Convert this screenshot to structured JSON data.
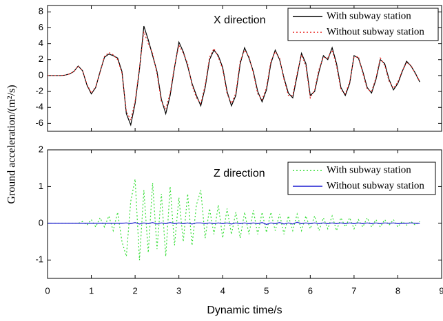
{
  "chart_data": [
    {
      "type": "line",
      "title": "X direction",
      "ylabel": "Ground acceleration/(m²/s)",
      "x": [
        0,
        0.1,
        0.2,
        0.3,
        0.4,
        0.5,
        0.6,
        0.7,
        0.8,
        0.9,
        1,
        1.1,
        1.2,
        1.3,
        1.4,
        1.5,
        1.6,
        1.7,
        1.8,
        1.9,
        2,
        2.1,
        2.2,
        2.3,
        2.4,
        2.5,
        2.6,
        2.7,
        2.8,
        2.9,
        3,
        3.1,
        3.2,
        3.3,
        3.4,
        3.5,
        3.6,
        3.7,
        3.8,
        3.9,
        4,
        4.1,
        4.2,
        4.3,
        4.4,
        4.5,
        4.6,
        4.7,
        4.8,
        4.9,
        5,
        5.1,
        5.2,
        5.3,
        5.4,
        5.5,
        5.6,
        5.7,
        5.8,
        5.9,
        6,
        6.1,
        6.2,
        6.3,
        6.4,
        6.5,
        6.6,
        6.7,
        6.8,
        6.9,
        7,
        7.1,
        7.2,
        7.3,
        7.4,
        7.5,
        7.6,
        7.7,
        7.8,
        7.9,
        8,
        8.1,
        8.2,
        8.3,
        8.4,
        8.5
      ],
      "series": [
        {
          "name": "With subway station",
          "color": "#000000",
          "line_style": "solid",
          "values": [
            0,
            0,
            0,
            0,
            0.05,
            0.2,
            0.5,
            1.2,
            0.6,
            -1.2,
            -2.3,
            -1.5,
            0.5,
            2.3,
            2.7,
            2.5,
            2.2,
            0.5,
            -4.8,
            -6.2,
            -3.5,
            0.8,
            6.2,
            4.5,
            2.5,
            0.5,
            -3.0,
            -4.8,
            -2.5,
            1.0,
            4.2,
            3.0,
            1.2,
            -1.0,
            -2.5,
            -3.8,
            -1.5,
            2.0,
            3.2,
            2.5,
            1.0,
            -2.0,
            -3.8,
            -2.5,
            1.5,
            3.5,
            2.2,
            0.5,
            -2.0,
            -3.3,
            -1.8,
            1.5,
            3.2,
            2.0,
            -0.3,
            -2.2,
            -2.8,
            0,
            2.8,
            1.5,
            -2.5,
            -2.0,
            0.5,
            2.5,
            2.0,
            3.5,
            1.5,
            -1.5,
            -2.5,
            -1.0,
            2.5,
            2.2,
            0.5,
            -1.5,
            -2.2,
            -0.5,
            2.0,
            1.5,
            -0.5,
            -1.8,
            -1.0,
            0.5,
            1.8,
            1.2,
            0.3,
            -0.8
          ]
        },
        {
          "name": "Without subway station",
          "color": "#e8201c",
          "line_style": "dotted",
          "values": [
            0,
            0,
            0,
            0,
            0.05,
            0.2,
            0.5,
            1.2,
            0.6,
            -1.1,
            -2.2,
            -1.4,
            0.4,
            2.4,
            2.9,
            2.6,
            2.0,
            0.3,
            -4.5,
            -5.6,
            -3.2,
            1.0,
            5.5,
            4.0,
            2.8,
            0.2,
            -3.3,
            -4.2,
            -2.2,
            1.2,
            3.8,
            2.8,
            1.5,
            -1.2,
            -2.8,
            -3.5,
            -1.2,
            2.3,
            3.4,
            2.3,
            0.8,
            -2.3,
            -3.5,
            -2.2,
            1.8,
            3.2,
            2.4,
            0.3,
            -2.3,
            -3.0,
            -1.5,
            1.8,
            3.0,
            2.2,
            -0.5,
            -2.5,
            -2.5,
            0.3,
            2.6,
            1.2,
            -2.8,
            -1.8,
            0.8,
            2.3,
            2.2,
            3.2,
            1.2,
            -1.8,
            -2.3,
            -0.8,
            2.3,
            2.4,
            0.3,
            -1.7,
            -2.0,
            -0.3,
            2.2,
            1.3,
            -0.7,
            -1.6,
            -0.8,
            0.6,
            1.6,
            1.3,
            0.2,
            -0.7
          ]
        }
      ],
      "xlim": [
        0,
        9
      ],
      "ylim": [
        -7,
        8.8
      ],
      "xticks": [
        0,
        1,
        2,
        3,
        4,
        5,
        6,
        7,
        8,
        9
      ],
      "yticks": [
        -6,
        -4,
        -2,
        0,
        2,
        4,
        6,
        8
      ],
      "xtick_labels": false,
      "legend": "upper right"
    },
    {
      "type": "line",
      "title": "Z direction",
      "xlabel": "Dynamic time/s",
      "x": [
        0,
        0.1,
        0.2,
        0.3,
        0.4,
        0.5,
        0.6,
        0.7,
        0.8,
        0.9,
        1,
        1.1,
        1.2,
        1.3,
        1.4,
        1.5,
        1.6,
        1.7,
        1.8,
        1.9,
        2,
        2.1,
        2.2,
        2.3,
        2.4,
        2.5,
        2.6,
        2.7,
        2.8,
        2.9,
        3,
        3.1,
        3.2,
        3.3,
        3.4,
        3.5,
        3.6,
        3.7,
        3.8,
        3.9,
        4,
        4.1,
        4.2,
        4.3,
        4.4,
        4.5,
        4.6,
        4.7,
        4.8,
        4.9,
        5,
        5.1,
        5.2,
        5.3,
        5.4,
        5.5,
        5.6,
        5.7,
        5.8,
        5.9,
        6,
        6.1,
        6.2,
        6.3,
        6.4,
        6.5,
        6.6,
        6.7,
        6.8,
        6.9,
        7,
        7.1,
        7.2,
        7.3,
        7.4,
        7.5,
        7.6,
        7.7,
        7.8,
        7.9,
        8,
        8.1,
        8.2,
        8.3,
        8.4,
        8.5
      ],
      "series": [
        {
          "name": "With subway station",
          "color": "#33dd33",
          "line_style": "dotted",
          "values": [
            0,
            0,
            0,
            0,
            0,
            0,
            0,
            0,
            0.05,
            -0.05,
            0.1,
            -0.1,
            0.15,
            -0.1,
            0.2,
            -0.2,
            0.3,
            -0.5,
            -0.9,
            0.6,
            1.2,
            -1.0,
            0.9,
            -0.8,
            1.1,
            -0.7,
            0.8,
            -0.9,
            1.0,
            -0.6,
            0.7,
            -0.5,
            0.8,
            -0.6,
            0.5,
            0.9,
            -0.4,
            0.4,
            -0.3,
            0.5,
            -0.4,
            0.4,
            -0.3,
            0.3,
            -0.4,
            0.3,
            -0.3,
            0.35,
            -0.3,
            0.3,
            -0.25,
            0.3,
            -0.2,
            0.25,
            -0.3,
            0.2,
            -0.2,
            0.25,
            -0.2,
            0.2,
            -0.15,
            0.2,
            -0.2,
            0.15,
            -0.15,
            0.2,
            -0.2,
            0.15,
            -0.1,
            0.15,
            -0.15,
            0.1,
            -0.1,
            0.15,
            -0.1,
            0.1,
            -0.1,
            0.1,
            -0.05,
            0.1,
            -0.1,
            0.05,
            -0.05,
            0.05,
            -0.05,
            0.05
          ]
        },
        {
          "name": "Without subway station",
          "color": "#1a1ad0",
          "line_style": "solid",
          "values": [
            0,
            0,
            0,
            0,
            0,
            0,
            0,
            0,
            0,
            0,
            0,
            0,
            0,
            0,
            0,
            0,
            0,
            0,
            0.01,
            -0.01,
            0.02,
            -0.02,
            0.01,
            -0.01,
            0.02,
            -0.02,
            0.01,
            -0.01,
            0.02,
            -0.01,
            0.01,
            -0.01,
            0.01,
            -0.02,
            0.01,
            0.01,
            -0.01,
            0.01,
            -0.01,
            0.01,
            -0.01,
            0.01,
            -0.02,
            0.01,
            -0.01,
            0.01,
            -0.01,
            0.01,
            -0.01,
            0.02,
            -0.03,
            0.01,
            -0.01,
            0.02,
            -0.02,
            0.01,
            -0.02,
            0.03,
            -0.01,
            0.01,
            -0.01,
            0.01,
            -0.01,
            0.01,
            -0.01,
            0.01,
            -0.01,
            0.01,
            -0.01,
            0.01,
            -0.01,
            0.01,
            -0.01,
            0.01,
            -0.01,
            0.01,
            -0.01,
            0.01,
            0,
            0.01,
            -0.01,
            0,
            0,
            0.01,
            0,
            0
          ]
        }
      ],
      "xlim": [
        0,
        9
      ],
      "ylim": [
        -1.5,
        2
      ],
      "xticks": [
        0,
        1,
        2,
        3,
        4,
        5,
        6,
        7,
        8,
        9
      ],
      "yticks": [
        -1,
        0,
        1,
        2
      ],
      "xtick_labels": true,
      "legend": "upper right"
    }
  ]
}
